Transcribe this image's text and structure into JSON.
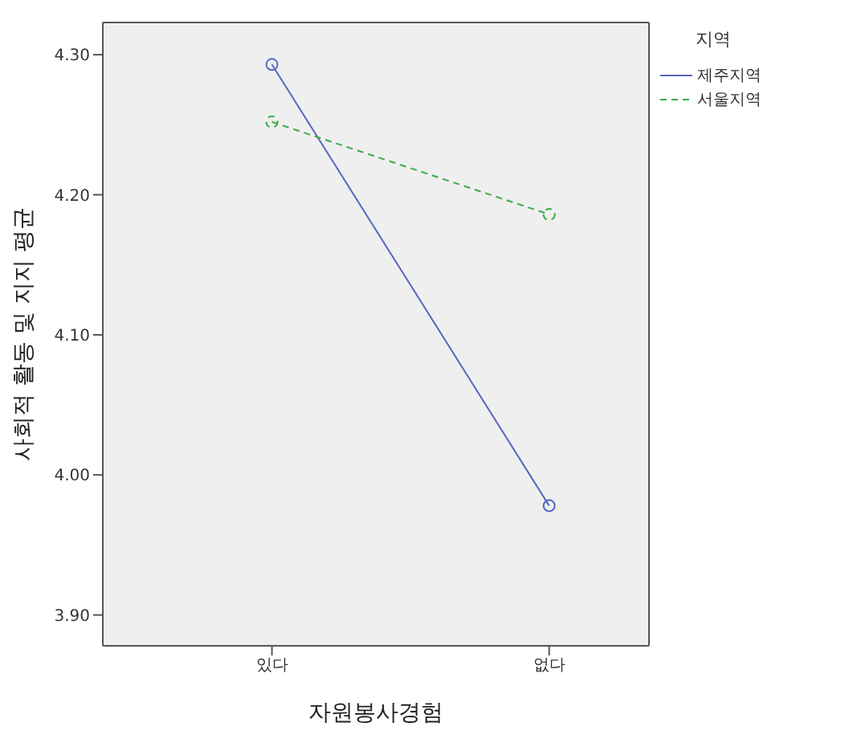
{
  "chart_data": {
    "type": "line",
    "xlabel": "자원봉사경험",
    "ylabel": "사회적 활동 및 지지 평균",
    "legend_title": "지역",
    "categories": [
      "있다",
      "없다"
    ],
    "series": [
      {
        "name": "제주지역",
        "color": "#5766c0",
        "values": [
          4.293,
          3.978
        ],
        "line_style": "solid"
      },
      {
        "name": "서울지역",
        "color": "#3aab45",
        "values": [
          4.252,
          4.186
        ],
        "line_style": "dashed"
      }
    ],
    "ylim": [
      3.878,
      4.323
    ],
    "yticks": [
      {
        "value": 3.9,
        "label": "3.90"
      },
      {
        "value": 4.0,
        "label": "4.00"
      },
      {
        "value": 4.1,
        "label": "4.10"
      },
      {
        "value": 4.2,
        "label": "4.20"
      },
      {
        "value": 4.3,
        "label": "4.30"
      }
    ],
    "marker": "circle",
    "grid": false,
    "legend": "top right"
  }
}
